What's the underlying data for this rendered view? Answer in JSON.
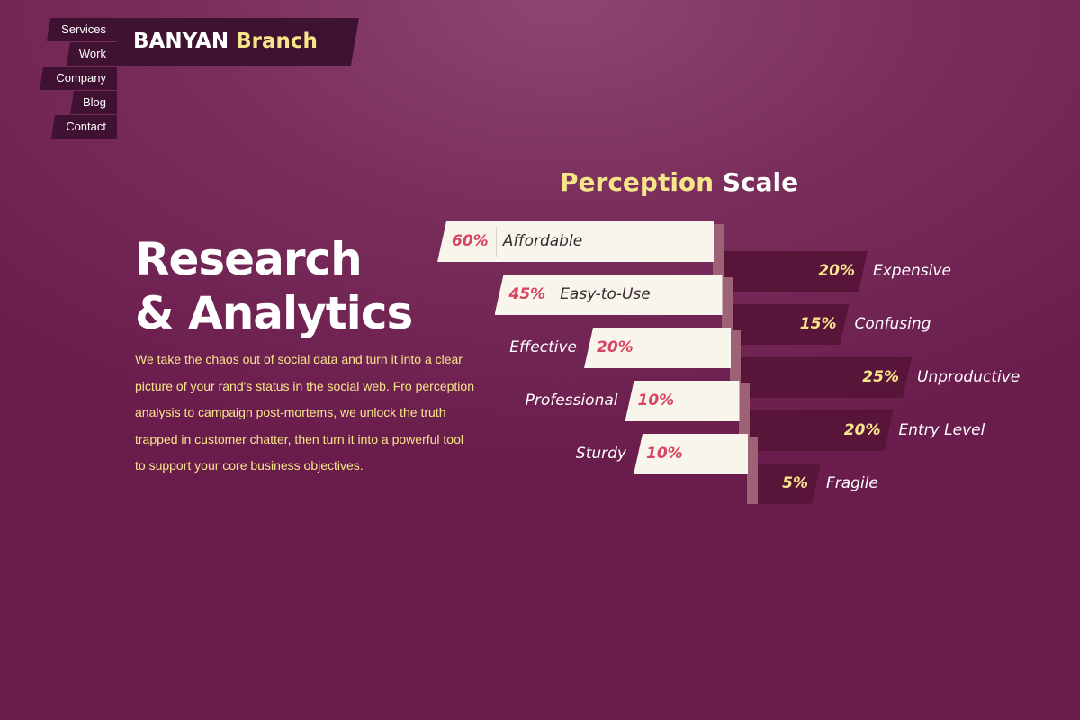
{
  "nav": {
    "items": [
      "Services",
      "Work",
      "Company",
      "Blog",
      "Contact"
    ]
  },
  "logo": {
    "word1": "BANYAN",
    "word2": "Branch"
  },
  "hero": {
    "title_line1": "Research",
    "title_line2": "& Analytics",
    "body": "We take the chaos out of social data and turn it into a clear picture of your rand's status in the social web. Fro perception analysis to campaign post-mortems, we unlock the truth trapped in customer chatter, then turn it into a powerful tool to support your core business objectives."
  },
  "chart_data": {
    "type": "bar",
    "title": "Perception Scale",
    "title_word1": "Perception",
    "title_word2": "Scale",
    "rows": [
      {
        "positive": "Affordable",
        "positive_value": 60,
        "negative": "Expensive",
        "negative_value": 20
      },
      {
        "positive": "Easy-to-Use",
        "positive_value": 45,
        "negative": "Confusing",
        "negative_value": 15
      },
      {
        "positive": "Effective",
        "positive_value": 20,
        "negative": "Unproductive",
        "negative_value": 25
      },
      {
        "positive": "Professional",
        "positive_value": 10,
        "negative": "Entry Level",
        "negative_value": 20
      },
      {
        "positive": "Sturdy",
        "positive_value": 10,
        "negative": "Fragile",
        "negative_value": 5
      }
    ],
    "colors": {
      "positive_bar": "#f7f5ec",
      "negative_bar": "#591539",
      "positive_value": "#d8435f",
      "negative_value": "#f7e58a"
    }
  }
}
